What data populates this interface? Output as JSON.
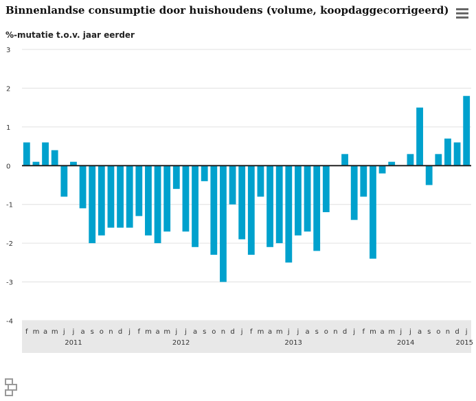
{
  "chart_data": {
    "type": "bar",
    "title": "Binnenlandse consumptie door huishoudens (volume, koopdaggecorrigeerd)",
    "ylabel": "%-mutatie t.o.v. jaar eerder",
    "xlabel": "",
    "ylim": [
      -4,
      3
    ],
    "yticks": [
      3,
      2,
      1,
      0,
      -1,
      -2,
      -3,
      -4
    ],
    "bar_color": "#00a1cd",
    "grid": true,
    "categories": [
      "f",
      "m",
      "a",
      "m",
      "j",
      "j",
      "a",
      "s",
      "o",
      "n",
      "d",
      "j",
      "f",
      "m",
      "a",
      "m",
      "j",
      "j",
      "a",
      "s",
      "o",
      "n",
      "d",
      "j",
      "f",
      "m",
      "a",
      "m",
      "j",
      "j",
      "a",
      "s",
      "o",
      "n",
      "d",
      "j",
      "f",
      "m",
      "a",
      "m",
      "j",
      "j",
      "a",
      "s",
      "o",
      "n",
      "d",
      "j"
    ],
    "year_labels": [
      {
        "label": "2011",
        "index": 5
      },
      {
        "label": "2012",
        "index": 16.5
      },
      {
        "label": "2013",
        "index": 28.5
      },
      {
        "label": "2014",
        "index": 40.5
      },
      {
        "label": "2015",
        "index": 47
      }
    ],
    "values": [
      0.6,
      0.1,
      0.6,
      0.4,
      -0.8,
      0.1,
      -1.1,
      -2.0,
      -1.8,
      -1.6,
      -1.6,
      -1.6,
      -1.3,
      -1.8,
      -2.0,
      -1.7,
      -0.6,
      -1.7,
      -2.1,
      -0.4,
      -2.3,
      -3.0,
      -1.0,
      -1.9,
      -2.3,
      -0.8,
      -2.1,
      -2.0,
      -2.5,
      -1.8,
      -1.7,
      -2.2,
      -1.2,
      null,
      0.3,
      -1.4,
      -0.8,
      -2.4,
      -0.2,
      0.1,
      null,
      0.3,
      1.5,
      -0.5,
      0.3,
      0.7,
      0.6,
      1.8
    ]
  },
  "menu_icon": "hamburger-menu-icon",
  "logo_icon": "cbs-logo-icon"
}
